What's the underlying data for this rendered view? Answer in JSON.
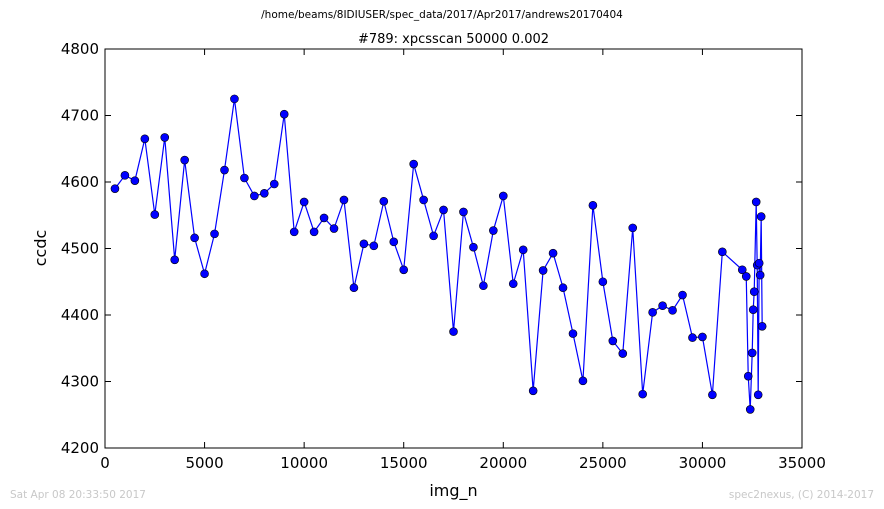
{
  "header": {
    "file_path": "/home/beams/8IDIUSER/spec_data/2017/Apr2017/andrews20170404"
  },
  "footer": {
    "timestamp": "Sat Apr 08 20:33:50 2017",
    "credit": "spec2nexus, (C) 2014-2017"
  },
  "chart_data": {
    "type": "line",
    "title": "#789: xpcsscan 50000 0.002",
    "xlabel": "img_n",
    "ylabel": "ccdc",
    "xlim": [
      0,
      35000
    ],
    "ylim": [
      4200,
      4800
    ],
    "x_ticks": [
      "0",
      "5000",
      "10000",
      "15000",
      "20000",
      "25000",
      "30000",
      "35000"
    ],
    "y_ticks": [
      "4200",
      "4300",
      "4400",
      "4500",
      "4600",
      "4700",
      "4800"
    ],
    "grid": false,
    "line_color": "#0000ff",
    "marker_color": "#0000ff",
    "series": [
      {
        "x": [
          500,
          1000,
          1500,
          2000,
          2500,
          3000,
          3500,
          4000,
          4500,
          5000,
          5500,
          6000,
          6500,
          7000,
          7500,
          8000,
          8500,
          9000,
          9500,
          10000,
          10500,
          11000,
          11500,
          12000,
          12500,
          13000,
          13500,
          14000,
          14500,
          15000,
          15500,
          16000,
          16500,
          17000,
          17500,
          18000,
          18500,
          19000,
          19500,
          20000,
          20500,
          21000,
          21500,
          22000,
          22500,
          23000,
          23500,
          24000,
          24500,
          25000,
          25500,
          26000,
          26500,
          27000,
          27500,
          28000,
          28500,
          29000,
          29500,
          30000,
          30500,
          31000,
          32000,
          32200,
          32300,
          32400,
          32500,
          32550,
          32600,
          32700,
          32750,
          32800,
          32850,
          32900,
          32950,
          33000
        ],
        "y": [
          4590,
          4610,
          4602,
          4665,
          4551,
          4667,
          4483,
          4633,
          4516,
          4462,
          4522,
          4618,
          4725,
          4606,
          4579,
          4583,
          4597,
          4702,
          4525,
          4570,
          4525,
          4546,
          4530,
          4573,
          4441,
          4507,
          4504,
          4571,
          4510,
          4468,
          4627,
          4573,
          4519,
          4558,
          4375,
          4555,
          4502,
          4444,
          4527,
          4579,
          4447,
          4498,
          4286,
          4467,
          4493,
          4441,
          4372,
          4301,
          4565,
          4450,
          4361,
          4342,
          4531,
          4281,
          4404,
          4414,
          4407,
          4430,
          4366,
          4367,
          4280,
          4495,
          4468,
          4458,
          4308,
          4258,
          4343,
          4408,
          4435,
          4570,
          4475,
          4280,
          4478,
          4460,
          4548,
          4383
        ]
      }
    ]
  }
}
